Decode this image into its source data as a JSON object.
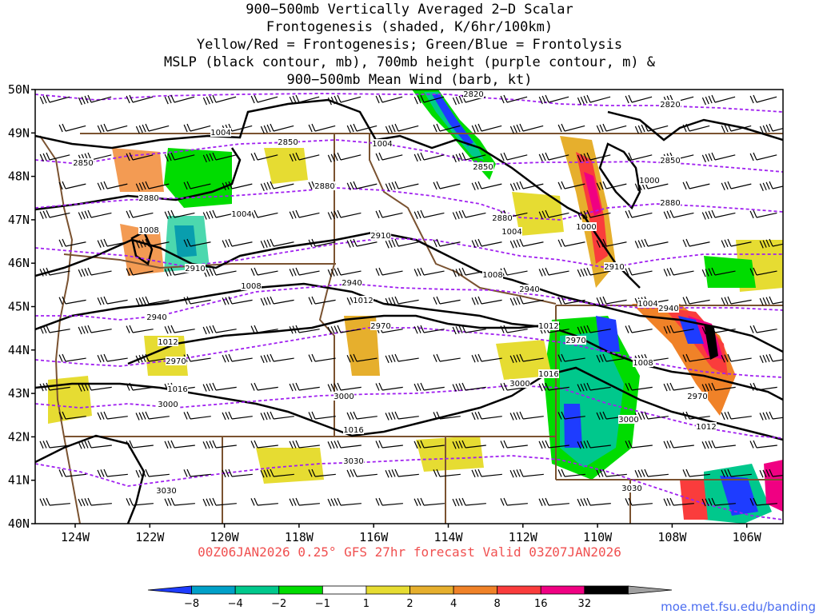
{
  "title_lines": [
    "900−500mb Vertically Averaged 2−D Scalar",
    "Frontogenesis (shaded, K/6hr/100km)",
    "Yellow/Red = Frontogenesis;  Green/Blue = Frontolysis",
    "MSLP (black contour, mb), 700mb height (purple contour, m) &",
    "900−500mb Mean Wind (barb, kt)"
  ],
  "lat_labels": [
    "50N",
    "49N",
    "48N",
    "47N",
    "46N",
    "45N",
    "44N",
    "43N",
    "42N",
    "41N",
    "40N"
  ],
  "lon_labels": [
    "124W",
    "122W",
    "120W",
    "118W",
    "116W",
    "114W",
    "112W",
    "110W",
    "108W",
    "106W"
  ],
  "run_info": "00Z06JAN2026 0.25° GFS 27hr forecast Valid 03Z07JAN2026",
  "credit": "moe.met.fsu.edu/banding",
  "colorbar": {
    "ticks": [
      "−8",
      "−4",
      "−2",
      "−1",
      "1",
      "2",
      "4",
      "8",
      "16",
      "32"
    ],
    "colors": [
      "#1e3cff",
      "#00a0c8",
      "#00c88c",
      "#00dc00",
      "#ffffff",
      "#e6dc32",
      "#e6af2d",
      "#f08228",
      "#fa3c3c",
      "#f00082",
      "#000000",
      "#a0a0a0"
    ]
  },
  "colors": {
    "mslp": "#000000",
    "height700": "#a020f0",
    "borders": "#7a5230",
    "run_info": "#f05050",
    "credit": "#4a6cf0"
  },
  "mslp_labels": [
    "1004",
    "1004",
    "1004",
    "1000",
    "1008",
    "1008",
    "1004",
    "1000",
    "1008",
    "1012",
    "1012",
    "1012",
    "1004",
    "1008",
    "1016",
    "1016",
    "1016",
    "1012"
  ],
  "height_labels": [
    "2820",
    "2820",
    "2850",
    "2850",
    "2850",
    "2850",
    "2880",
    "2880",
    "2880",
    "2880",
    "2910",
    "2910",
    "2910",
    "2940",
    "2940",
    "2940",
    "2940",
    "2970",
    "2970",
    "2970",
    "2970",
    "3000",
    "3000",
    "3000",
    "3000",
    "3030",
    "3030",
    "3030"
  ],
  "chart_data": {
    "type": "heatmap",
    "title": "900−500mb Vertically Averaged 2−D Scalar Frontogenesis (shaded, K/6hr/100km)",
    "lat_range": [
      40,
      50
    ],
    "lon_range": [
      -125,
      -105
    ],
    "units": "K/6hr/100km",
    "contour_fields": [
      "MSLP (black contour, mb)",
      "700mb height (purple contour, m)"
    ],
    "mslp_levels": [
      1000,
      1004,
      1008,
      1012,
      1016
    ],
    "height_levels": [
      2820,
      2850,
      2880,
      2910,
      2940,
      2970,
      3000,
      3030
    ],
    "wind_barbs": "900−500mb Mean Wind (barb, kt)"
  }
}
